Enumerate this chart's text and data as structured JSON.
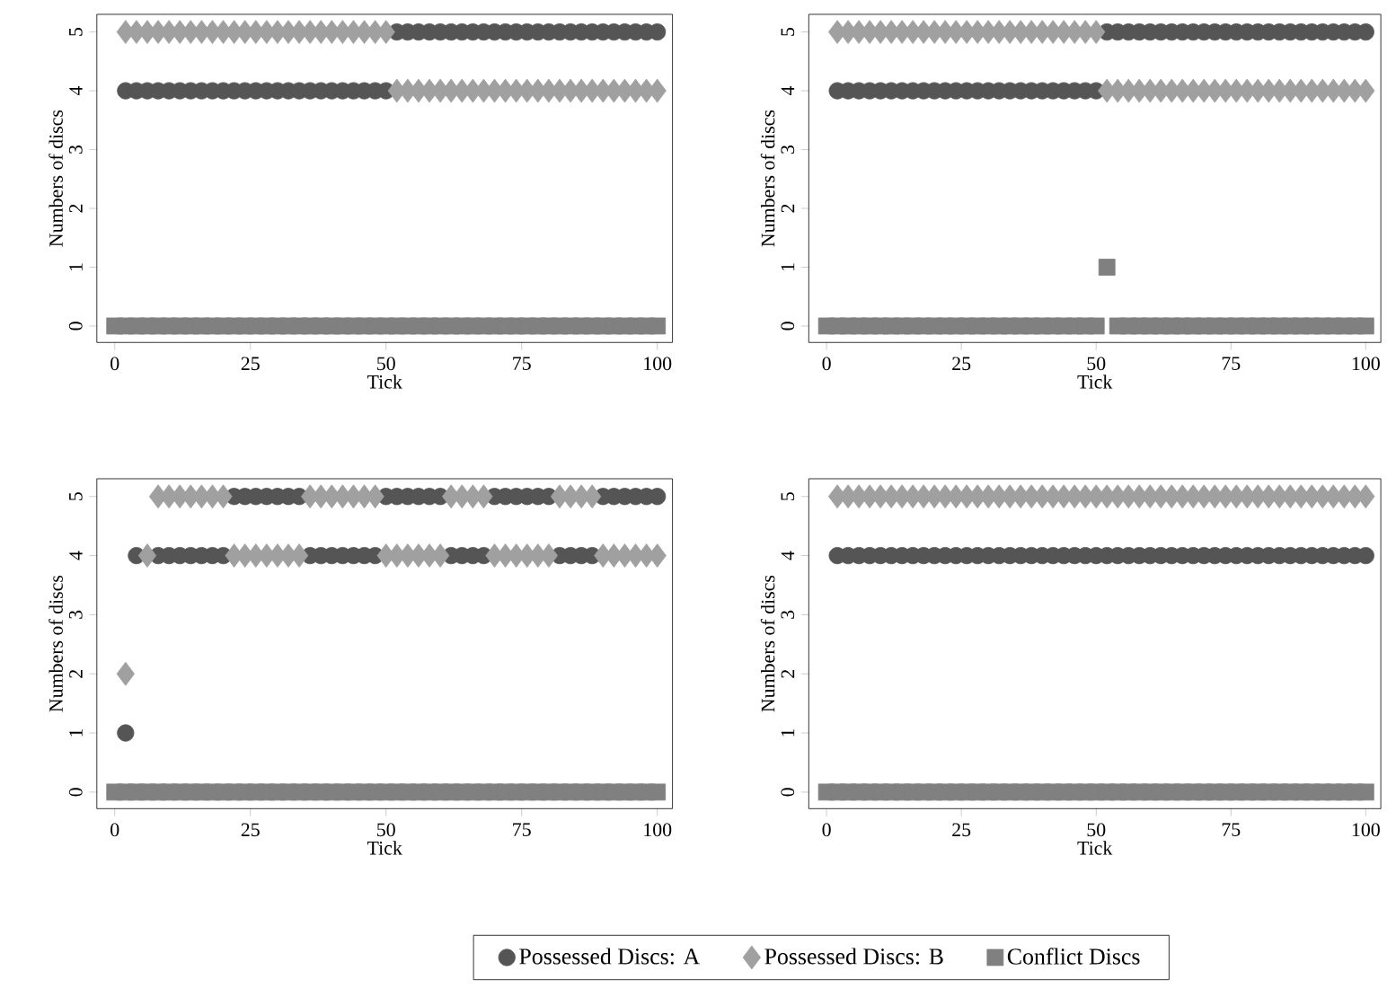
{
  "chart_data": [
    {
      "type": "scatter",
      "xlabel": "Tick",
      "ylabel": "Numbers of discs",
      "xlim": [
        -3.3,
        102.8
      ],
      "ylim": [
        -0.28,
        5.3
      ],
      "xticks": [
        0,
        25,
        50,
        75,
        100
      ],
      "yticks": [
        0,
        1,
        2,
        3,
        4,
        5
      ],
      "x": [
        0,
        2,
        4,
        6,
        8,
        10,
        12,
        14,
        16,
        18,
        20,
        22,
        24,
        26,
        28,
        30,
        32,
        34,
        36,
        38,
        40,
        42,
        44,
        46,
        48,
        50,
        52,
        54,
        56,
        58,
        60,
        62,
        64,
        66,
        68,
        70,
        72,
        74,
        76,
        78,
        80,
        82,
        84,
        86,
        88,
        90,
        92,
        94,
        96,
        98,
        100
      ],
      "series": [
        {
          "color": "#555555",
          "marker": "circle",
          "values": [
            null,
            4,
            4,
            4,
            4,
            4,
            4,
            4,
            4,
            4,
            4,
            4,
            4,
            4,
            4,
            4,
            4,
            4,
            4,
            4,
            4,
            4,
            4,
            4,
            4,
            4,
            5,
            5,
            5,
            5,
            5,
            5,
            5,
            5,
            5,
            5,
            5,
            5,
            5,
            5,
            5,
            5,
            5,
            5,
            5,
            5,
            5,
            5,
            5,
            5,
            5
          ]
        },
        {
          "color": "#a0a0a0",
          "marker": "diamond",
          "values": [
            null,
            5,
            5,
            5,
            5,
            5,
            5,
            5,
            5,
            5,
            5,
            5,
            5,
            5,
            5,
            5,
            5,
            5,
            5,
            5,
            5,
            5,
            5,
            5,
            5,
            5,
            4,
            4,
            4,
            4,
            4,
            4,
            4,
            4,
            4,
            4,
            4,
            4,
            4,
            4,
            4,
            4,
            4,
            4,
            4,
            4,
            4,
            4,
            4,
            4,
            4
          ]
        },
        {
          "color": "#808080",
          "marker": "square",
          "values": [
            0,
            0,
            0,
            0,
            0,
            0,
            0,
            0,
            0,
            0,
            0,
            0,
            0,
            0,
            0,
            0,
            0,
            0,
            0,
            0,
            0,
            0,
            0,
            0,
            0,
            0,
            0,
            0,
            0,
            0,
            0,
            0,
            0,
            0,
            0,
            0,
            0,
            0,
            0,
            0,
            0,
            0,
            0,
            0,
            0,
            0,
            0,
            0,
            0,
            0,
            0
          ]
        }
      ]
    },
    {
      "type": "scatter",
      "xlabel": "Tick",
      "ylabel": "Numbers of discs",
      "xlim": [
        -3.3,
        102.8
      ],
      "ylim": [
        -0.28,
        5.3
      ],
      "xticks": [
        0,
        25,
        50,
        75,
        100
      ],
      "yticks": [
        0,
        1,
        2,
        3,
        4,
        5
      ],
      "x": [
        0,
        2,
        4,
        6,
        8,
        10,
        12,
        14,
        16,
        18,
        20,
        22,
        24,
        26,
        28,
        30,
        32,
        34,
        36,
        38,
        40,
        42,
        44,
        46,
        48,
        50,
        52,
        54,
        56,
        58,
        60,
        62,
        64,
        66,
        68,
        70,
        72,
        74,
        76,
        78,
        80,
        82,
        84,
        86,
        88,
        90,
        92,
        94,
        96,
        98,
        100
      ],
      "series": [
        {
          "color": "#555555",
          "marker": "circle",
          "values": [
            null,
            4,
            4,
            4,
            4,
            4,
            4,
            4,
            4,
            4,
            4,
            4,
            4,
            4,
            4,
            4,
            4,
            4,
            4,
            4,
            4,
            4,
            4,
            4,
            4,
            4,
            5,
            5,
            5,
            5,
            5,
            5,
            5,
            5,
            5,
            5,
            5,
            5,
            5,
            5,
            5,
            5,
            5,
            5,
            5,
            5,
            5,
            5,
            5,
            5,
            5
          ]
        },
        {
          "color": "#a0a0a0",
          "marker": "diamond",
          "values": [
            null,
            5,
            5,
            5,
            5,
            5,
            5,
            5,
            5,
            5,
            5,
            5,
            5,
            5,
            5,
            5,
            5,
            5,
            5,
            5,
            5,
            5,
            5,
            5,
            5,
            5,
            4,
            4,
            4,
            4,
            4,
            4,
            4,
            4,
            4,
            4,
            4,
            4,
            4,
            4,
            4,
            4,
            4,
            4,
            4,
            4,
            4,
            4,
            4,
            4,
            4
          ]
        },
        {
          "color": "#808080",
          "marker": "square",
          "values": [
            0,
            0,
            0,
            0,
            0,
            0,
            0,
            0,
            0,
            0,
            0,
            0,
            0,
            0,
            0,
            0,
            0,
            0,
            0,
            0,
            0,
            0,
            0,
            0,
            0,
            0,
            1,
            0,
            0,
            0,
            0,
            0,
            0,
            0,
            0,
            0,
            0,
            0,
            0,
            0,
            0,
            0,
            0,
            0,
            0,
            0,
            0,
            0,
            0,
            0,
            0
          ]
        }
      ]
    },
    {
      "type": "scatter",
      "xlabel": "Tick",
      "ylabel": "Numbers of discs",
      "xlim": [
        -3.3,
        102.8
      ],
      "ylim": [
        -0.28,
        5.3
      ],
      "xticks": [
        0,
        25,
        50,
        75,
        100
      ],
      "yticks": [
        0,
        1,
        2,
        3,
        4,
        5
      ],
      "x": [
        0,
        2,
        4,
        6,
        8,
        10,
        12,
        14,
        16,
        18,
        20,
        22,
        24,
        26,
        28,
        30,
        32,
        34,
        36,
        38,
        40,
        42,
        44,
        46,
        48,
        50,
        52,
        54,
        56,
        58,
        60,
        62,
        64,
        66,
        68,
        70,
        72,
        74,
        76,
        78,
        80,
        82,
        84,
        86,
        88,
        90,
        92,
        94,
        96,
        98,
        100
      ],
      "series": [
        {
          "color": "#555555",
          "marker": "circle",
          "values": [
            null,
            1,
            4,
            null,
            4,
            4,
            4,
            4,
            4,
            4,
            4,
            5,
            5,
            5,
            5,
            5,
            5,
            5,
            4,
            4,
            4,
            4,
            4,
            4,
            4,
            5,
            5,
            5,
            5,
            5,
            5,
            4,
            4,
            4,
            4,
            5,
            5,
            5,
            5,
            5,
            5,
            4,
            4,
            4,
            4,
            5,
            5,
            5,
            5,
            5,
            5
          ]
        },
        {
          "color": "#a0a0a0",
          "marker": "diamond",
          "values": [
            null,
            2,
            null,
            4,
            5,
            5,
            5,
            5,
            5,
            5,
            5,
            4,
            4,
            4,
            4,
            4,
            4,
            4,
            5,
            5,
            5,
            5,
            5,
            5,
            5,
            4,
            4,
            4,
            4,
            4,
            4,
            5,
            5,
            5,
            5,
            4,
            4,
            4,
            4,
            4,
            4,
            5,
            5,
            5,
            5,
            4,
            4,
            4,
            4,
            4,
            4
          ]
        },
        {
          "color": "#808080",
          "marker": "square",
          "values": [
            0,
            0,
            0,
            0,
            0,
            0,
            0,
            0,
            0,
            0,
            0,
            0,
            0,
            0,
            0,
            0,
            0,
            0,
            0,
            0,
            0,
            0,
            0,
            0,
            0,
            0,
            0,
            0,
            0,
            0,
            0,
            0,
            0,
            0,
            0,
            0,
            0,
            0,
            0,
            0,
            0,
            0,
            0,
            0,
            0,
            0,
            0,
            0,
            0,
            0,
            0
          ]
        }
      ]
    },
    {
      "type": "scatter",
      "xlabel": "Tick",
      "ylabel": "Numbers of discs",
      "xlim": [
        -3.3,
        102.8
      ],
      "ylim": [
        -0.28,
        5.3
      ],
      "xticks": [
        0,
        25,
        50,
        75,
        100
      ],
      "yticks": [
        0,
        1,
        2,
        3,
        4,
        5
      ],
      "legend": "bottom",
      "x": [
        0,
        2,
        4,
        6,
        8,
        10,
        12,
        14,
        16,
        18,
        20,
        22,
        24,
        26,
        28,
        30,
        32,
        34,
        36,
        38,
        40,
        42,
        44,
        46,
        48,
        50,
        52,
        54,
        56,
        58,
        60,
        62,
        64,
        66,
        68,
        70,
        72,
        74,
        76,
        78,
        80,
        82,
        84,
        86,
        88,
        90,
        92,
        94,
        96,
        98,
        100
      ],
      "series": [
        {
          "name": "Possessed Discs: A",
          "color": "#555555",
          "marker": "circle",
          "values": [
            null,
            4,
            4,
            4,
            4,
            4,
            4,
            4,
            4,
            4,
            4,
            4,
            4,
            4,
            4,
            4,
            4,
            4,
            4,
            4,
            4,
            4,
            4,
            4,
            4,
            4,
            4,
            4,
            4,
            4,
            4,
            4,
            4,
            4,
            4,
            4,
            4,
            4,
            4,
            4,
            4,
            4,
            4,
            4,
            4,
            4,
            4,
            4,
            4,
            4,
            4
          ]
        },
        {
          "name": "Possessed Discs: B",
          "color": "#a0a0a0",
          "marker": "diamond",
          "values": [
            null,
            5,
            5,
            5,
            5,
            5,
            5,
            5,
            5,
            5,
            5,
            5,
            5,
            5,
            5,
            5,
            5,
            5,
            5,
            5,
            5,
            5,
            5,
            5,
            5,
            5,
            5,
            5,
            5,
            5,
            5,
            5,
            5,
            5,
            5,
            5,
            5,
            5,
            5,
            5,
            5,
            5,
            5,
            5,
            5,
            5,
            5,
            5,
            5,
            5,
            5
          ]
        },
        {
          "name": "Conflict Discs",
          "color": "#808080",
          "marker": "square",
          "values": [
            0,
            0,
            0,
            0,
            0,
            0,
            0,
            0,
            0,
            0,
            0,
            0,
            0,
            0,
            0,
            0,
            0,
            0,
            0,
            0,
            0,
            0,
            0,
            0,
            0,
            0,
            0,
            0,
            0,
            0,
            0,
            0,
            0,
            0,
            0,
            0,
            0,
            0,
            0,
            0,
            0,
            0,
            0,
            0,
            0,
            0,
            0,
            0,
            0,
            0,
            0
          ]
        }
      ]
    }
  ]
}
